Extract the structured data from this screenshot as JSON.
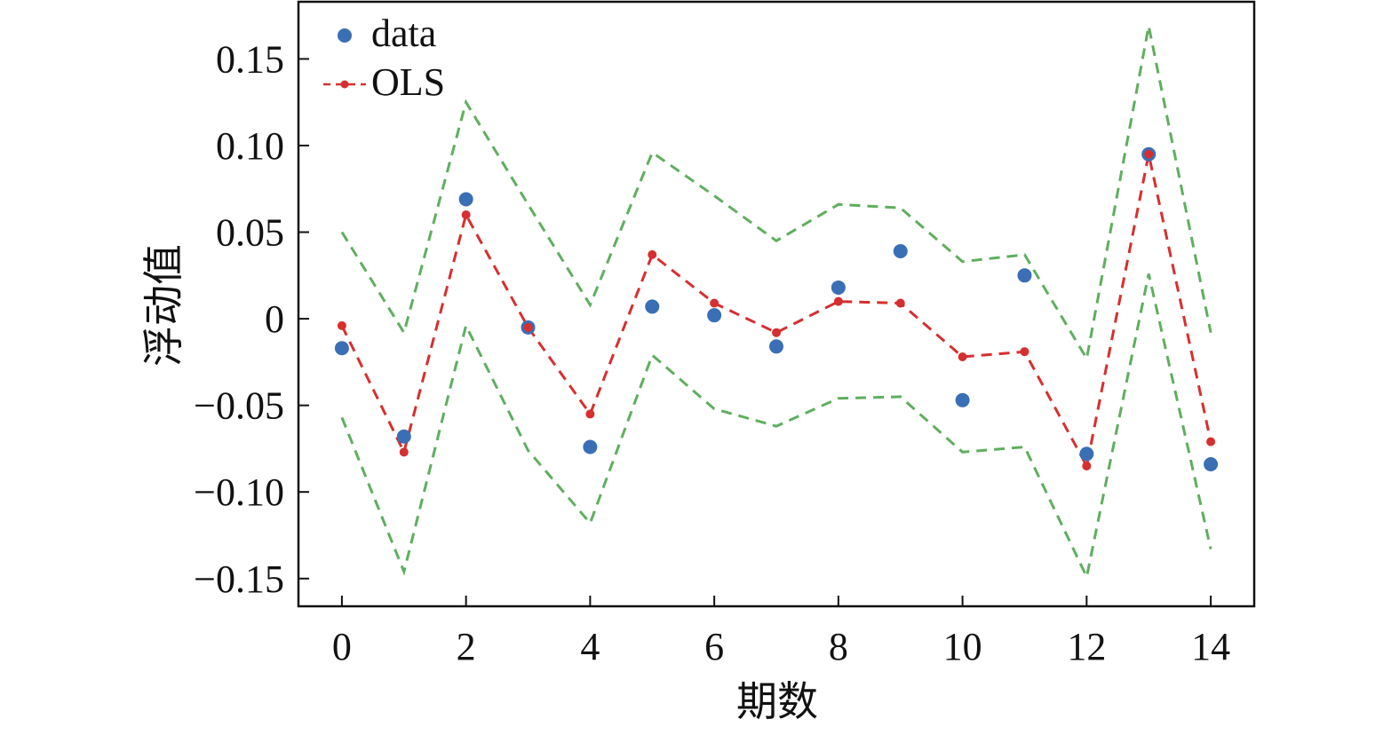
{
  "chart_data": {
    "type": "line",
    "xlabel": "期数",
    "ylabel": "浮动值",
    "xlim": [
      -0.7,
      14.7
    ],
    "ylim": [
      -0.166,
      0.183
    ],
    "xticks": [
      0,
      2,
      4,
      6,
      8,
      10,
      12,
      14
    ],
    "xtick_labels": [
      "0",
      "2",
      "4",
      "6",
      "8",
      "10",
      "12",
      "14"
    ],
    "yticks": [
      0.15,
      0.1,
      0.05,
      0,
      -0.05,
      -0.1,
      -0.15
    ],
    "ytick_labels": [
      "0.15",
      "0.10",
      "0.05",
      "0",
      "−0.05",
      "−0.10",
      "−0.15"
    ],
    "grid": false,
    "legend_position": "top-left",
    "legend": [
      "data",
      "OLS"
    ],
    "series": [
      {
        "name": "data",
        "kind": "scatter",
        "color": "#3a6fb5",
        "x": [
          0,
          1,
          2,
          3,
          4,
          5,
          6,
          7,
          8,
          9,
          10,
          11,
          12,
          13,
          14
        ],
        "y": [
          -0.017,
          -0.068,
          0.069,
          -0.005,
          -0.074,
          0.007,
          0.002,
          -0.016,
          0.018,
          0.039,
          -0.047,
          0.025,
          -0.078,
          0.095,
          -0.084
        ]
      },
      {
        "name": "OLS",
        "kind": "line",
        "style": "dashed-with-markers",
        "color": "#d62f2f",
        "x": [
          0,
          1,
          2,
          3,
          4,
          5,
          6,
          7,
          8,
          9,
          10,
          11,
          12,
          13,
          14
        ],
        "y": [
          -0.004,
          -0.077,
          0.06,
          -0.005,
          -0.055,
          0.037,
          0.009,
          -0.008,
          0.01,
          0.009,
          -0.022,
          -0.019,
          -0.085,
          0.095,
          -0.071
        ]
      },
      {
        "kind": "line",
        "style": "dashed",
        "color": "#5fae5f",
        "x": [
          0,
          1,
          2,
          3,
          4,
          5,
          6,
          7,
          8,
          9,
          10,
          11,
          12,
          13,
          14
        ],
        "y": [
          0.05,
          -0.008,
          0.125,
          0.066,
          0.008,
          0.096,
          0.071,
          0.045,
          0.066,
          0.064,
          0.033,
          0.037,
          -0.023,
          0.169,
          -0.008
        ]
      },
      {
        "kind": "line",
        "style": "dashed",
        "color": "#5fae5f",
        "x": [
          0,
          1,
          2,
          3,
          4,
          5,
          6,
          7,
          8,
          9,
          10,
          11,
          12,
          13,
          14
        ],
        "y": [
          -0.057,
          -0.146,
          -0.004,
          -0.076,
          -0.118,
          -0.021,
          -0.052,
          -0.062,
          -0.046,
          -0.045,
          -0.077,
          -0.074,
          -0.149,
          0.026,
          -0.133
        ]
      }
    ]
  }
}
